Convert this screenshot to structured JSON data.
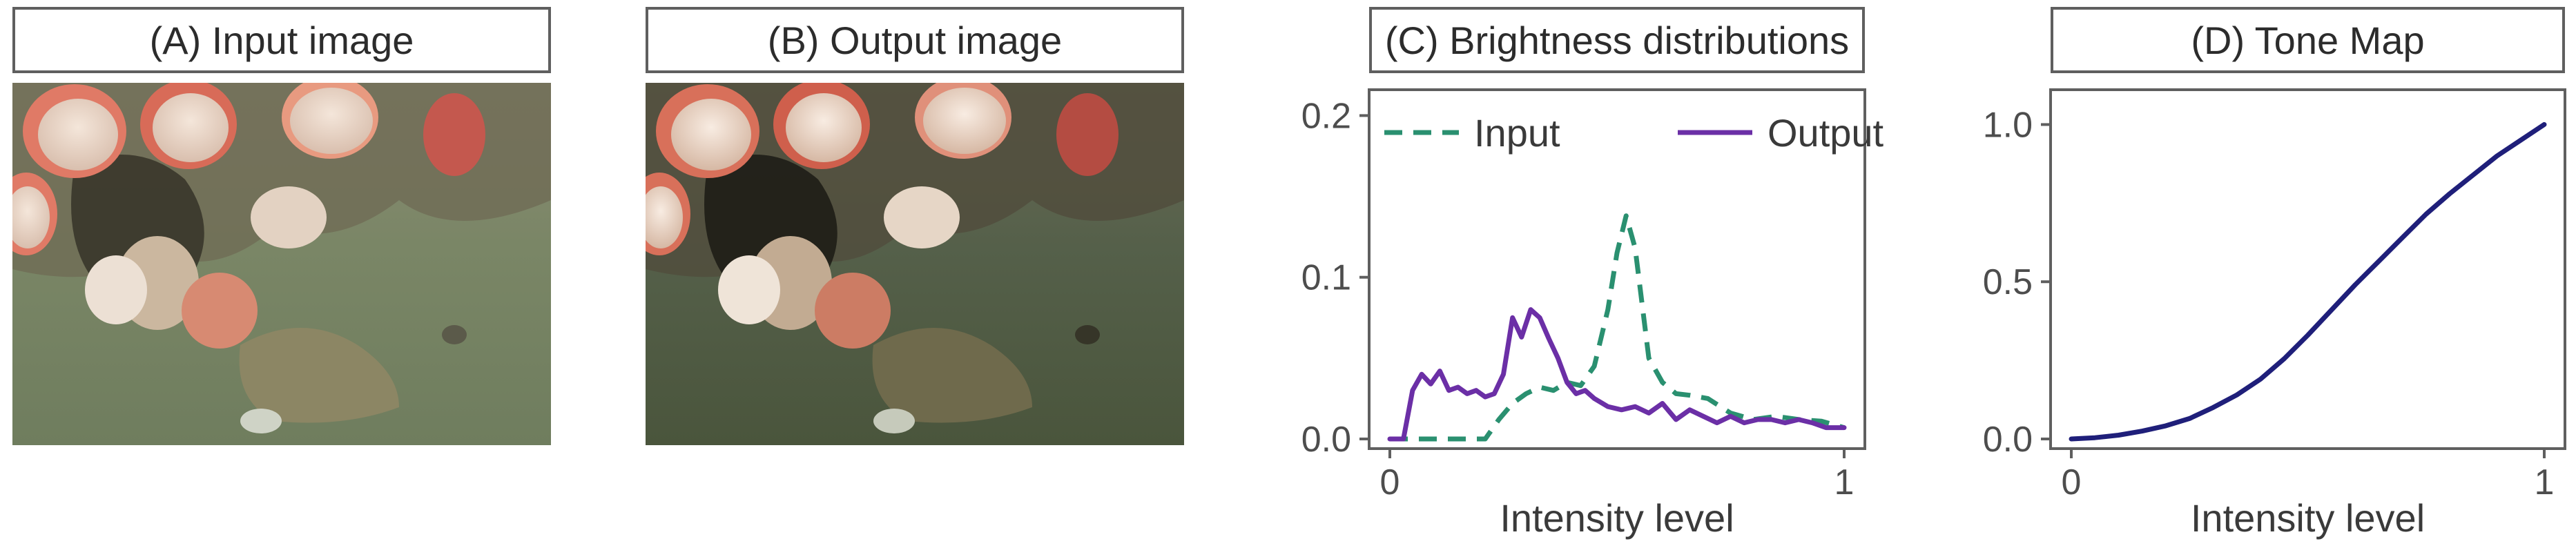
{
  "panels": {
    "a": {
      "title": "(A) Input image"
    },
    "b": {
      "title": "(B) Output image"
    },
    "c": {
      "title": "(C) Brightness distributions"
    },
    "d": {
      "title": "(D) Tone Map"
    }
  },
  "colors": {
    "input_series": "#2a9070",
    "output_series": "#6b2fa6",
    "tone_map": "#1f1f7a",
    "frame": "#5f5f5f",
    "input_image_tint": "#6f7d5e",
    "output_image_tint": "#4a553c"
  },
  "chart_data": [
    {
      "id": "brightness",
      "type": "line",
      "xlabel": "Intensity level",
      "ylabel": "",
      "xlim": [
        0,
        1
      ],
      "ylim": [
        0,
        0.21
      ],
      "xticks": [
        0,
        1
      ],
      "xtick_labels": [
        "0",
        "1"
      ],
      "yticks": [
        0.0,
        0.1,
        0.2
      ],
      "ytick_labels": [
        "0.0",
        "0.1",
        "0.2"
      ],
      "legend_position": "top",
      "series": [
        {
          "name": "Input",
          "style": "dashed",
          "x": [
            0,
            0.03,
            0.06,
            0.09,
            0.12,
            0.15,
            0.18,
            0.21,
            0.24,
            0.27,
            0.3,
            0.33,
            0.36,
            0.39,
            0.42,
            0.45,
            0.48,
            0.5,
            0.52,
            0.54,
            0.57,
            0.6,
            0.63,
            0.66,
            0.7,
            0.75,
            0.8,
            0.85,
            0.9,
            0.95,
            1.0
          ],
          "y": [
            0.0,
            0.0,
            0.0,
            0.0,
            0.0,
            0.0,
            0.0,
            0.0,
            0.012,
            0.022,
            0.028,
            0.032,
            0.03,
            0.035,
            0.033,
            0.045,
            0.08,
            0.115,
            0.138,
            0.118,
            0.05,
            0.035,
            0.028,
            0.027,
            0.025,
            0.016,
            0.012,
            0.014,
            0.012,
            0.011,
            0.007
          ]
        },
        {
          "name": "Output",
          "style": "solid",
          "x": [
            0,
            0.03,
            0.05,
            0.07,
            0.09,
            0.11,
            0.13,
            0.15,
            0.17,
            0.19,
            0.21,
            0.23,
            0.25,
            0.27,
            0.29,
            0.31,
            0.33,
            0.35,
            0.37,
            0.39,
            0.41,
            0.43,
            0.45,
            0.48,
            0.51,
            0.54,
            0.57,
            0.6,
            0.63,
            0.66,
            0.69,
            0.72,
            0.75,
            0.78,
            0.81,
            0.84,
            0.87,
            0.9,
            0.93,
            0.96,
            1.0
          ],
          "y": [
            0.0,
            0.0,
            0.03,
            0.04,
            0.034,
            0.042,
            0.03,
            0.032,
            0.028,
            0.03,
            0.026,
            0.028,
            0.04,
            0.075,
            0.063,
            0.08,
            0.075,
            0.062,
            0.05,
            0.035,
            0.028,
            0.03,
            0.025,
            0.02,
            0.018,
            0.02,
            0.016,
            0.022,
            0.012,
            0.018,
            0.014,
            0.01,
            0.014,
            0.01,
            0.012,
            0.012,
            0.01,
            0.012,
            0.01,
            0.007,
            0.007
          ]
        }
      ]
    },
    {
      "id": "tone_map",
      "type": "line",
      "xlabel": "Intensity level",
      "ylabel": "",
      "xlim": [
        0,
        1
      ],
      "ylim": [
        0,
        1.08
      ],
      "xticks": [
        0,
        1
      ],
      "xtick_labels": [
        "0",
        "1"
      ],
      "yticks": [
        0.0,
        0.5,
        1.0
      ],
      "ytick_labels": [
        "0.0",
        "0.5",
        "1.0"
      ],
      "series": [
        {
          "name": "",
          "x": [
            0,
            0.05,
            0.1,
            0.15,
            0.2,
            0.25,
            0.3,
            0.35,
            0.4,
            0.45,
            0.5,
            0.55,
            0.6,
            0.65,
            0.7,
            0.75,
            0.8,
            0.85,
            0.9,
            0.95,
            1.0
          ],
          "y": [
            0.0,
            0.004,
            0.012,
            0.025,
            0.042,
            0.065,
            0.1,
            0.14,
            0.19,
            0.255,
            0.33,
            0.41,
            0.49,
            0.565,
            0.64,
            0.715,
            0.78,
            0.84,
            0.9,
            0.95,
            1.0
          ]
        }
      ]
    }
  ]
}
